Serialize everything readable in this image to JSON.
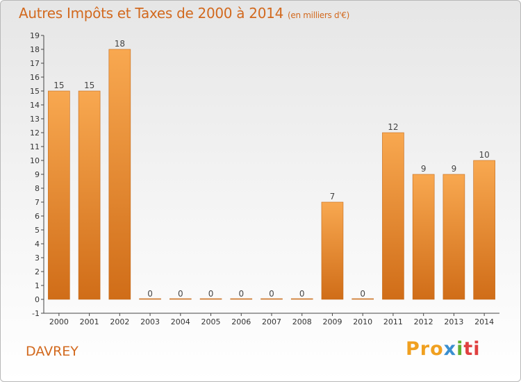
{
  "title": "Autres Impôts et Taxes de 2000 à 2014",
  "unit": "(en milliers d'€)",
  "city": "DAVREY",
  "logo": {
    "parts": [
      "Pro",
      "x",
      "i",
      "ti"
    ],
    "colors": [
      "#f0a020",
      "#3a8fd0",
      "#60b030",
      "#e04040"
    ]
  },
  "chart_data": {
    "type": "bar",
    "categories": [
      "2000",
      "2001",
      "2002",
      "2003",
      "2004",
      "2005",
      "2006",
      "2007",
      "2008",
      "2009",
      "2010",
      "2011",
      "2012",
      "2013",
      "2014"
    ],
    "values": [
      15,
      15,
      18,
      0,
      0,
      0,
      0,
      0,
      0,
      7,
      0,
      12,
      9,
      9,
      10
    ],
    "data_labels": [
      "15",
      "15",
      "18",
      "0",
      "0",
      "0",
      "0",
      "0",
      "0",
      "7",
      "0",
      "12",
      "9",
      "9",
      "10"
    ],
    "yticks": [
      "-1",
      "0",
      "1",
      "2",
      "3",
      "4",
      "5",
      "6",
      "7",
      "8",
      "9",
      "10",
      "11",
      "12",
      "13",
      "14",
      "15",
      "16",
      "17",
      "18",
      "19"
    ],
    "ylim": [
      -1,
      19
    ],
    "bar_color": "#f0922e",
    "grid": false,
    "legend": "none"
  }
}
